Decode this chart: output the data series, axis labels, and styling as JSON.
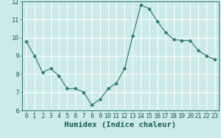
{
  "x": [
    0,
    1,
    2,
    3,
    4,
    5,
    6,
    7,
    8,
    9,
    10,
    11,
    12,
    13,
    14,
    15,
    16,
    17,
    18,
    19,
    20,
    21,
    22,
    23
  ],
  "y": [
    9.8,
    9.0,
    8.1,
    8.3,
    7.9,
    7.2,
    7.2,
    7.0,
    6.3,
    6.6,
    7.2,
    7.5,
    8.3,
    10.1,
    11.8,
    11.6,
    10.9,
    10.3,
    9.9,
    9.85,
    9.85,
    9.3,
    9.0,
    8.8
  ],
  "xlabel": "Humidex (Indice chaleur)",
  "ylim": [
    6,
    12
  ],
  "yticks": [
    6,
    7,
    8,
    9,
    10,
    11,
    12
  ],
  "xticks": [
    0,
    1,
    2,
    3,
    4,
    5,
    6,
    7,
    8,
    9,
    10,
    11,
    12,
    13,
    14,
    15,
    16,
    17,
    18,
    19,
    20,
    21,
    22,
    23
  ],
  "line_color": "#2e7d6e",
  "marker": "D",
  "marker_size": 2.5,
  "bg_color": "#cceae8",
  "grid_color": "#ffffff",
  "xlabel_fontsize": 8,
  "tick_fontsize": 6.5,
  "spine_color": "#2e7d6e"
}
